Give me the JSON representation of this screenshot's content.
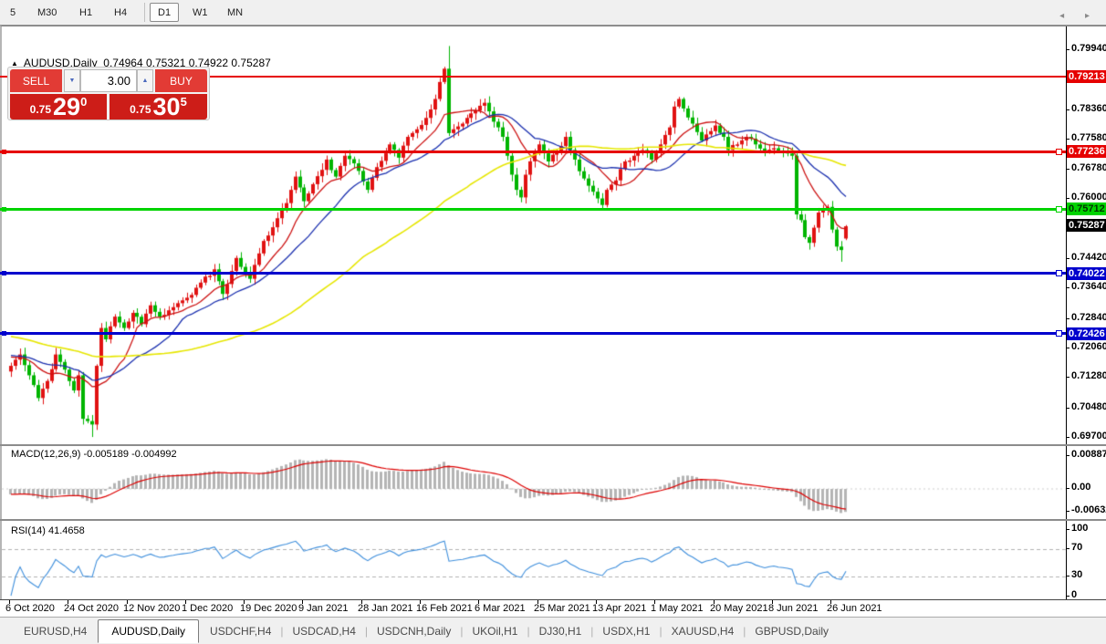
{
  "icons": {
    "collapse": "▲",
    "spin_down": "▼",
    "spin_up": "▲",
    "tab_scroll": "◂ ▸"
  },
  "toolbar": {
    "timeframes": [
      {
        "label": "5"
      },
      {
        "label": "M30"
      },
      {
        "label": "H1"
      },
      {
        "label": "H4"
      },
      {
        "label": "D1",
        "active": true,
        "sep_before": true
      },
      {
        "label": "W1"
      },
      {
        "label": "MN"
      }
    ]
  },
  "chart_header": {
    "symbol": "AUDUSD,Daily",
    "ohlc_values": "0.74964 0.75321 0.74922 0.75287"
  },
  "trade_panel": {
    "sell_label": "SELL",
    "buy_label": "BUY",
    "volume": "3.00",
    "sell_price": {
      "prefix": "0.75",
      "big": "29",
      "sup": "0"
    },
    "buy_price": {
      "prefix": "0.75",
      "big": "30",
      "sup": "5"
    }
  },
  "chart_data": [
    {
      "id": "price-chart",
      "type": "candlestick",
      "symbol": "AUDUSD",
      "timeframe": "Daily",
      "up_color": "#e01212",
      "down_color": "#00b400",
      "candles_count": 186,
      "y_axis_ticks": [
        "0.79940",
        "0.78360",
        "0.77580",
        "0.76780",
        "0.76000",
        "0.74420",
        "0.73640",
        "0.72840",
        "0.72060",
        "0.71280",
        "0.70480",
        "0.69700"
      ],
      "x_labels": [
        "6 Oct 2020",
        "24 Oct 2020",
        "12 Nov 2020",
        "1 Dec 2020",
        "19 Dec 2020",
        "9 Jan 2021",
        "28 Jan 2021",
        "16 Feb 2021",
        "6 Mar 2021",
        "25 Mar 2021",
        "13 Apr 2021",
        "1 May 2021",
        "20 May 2021",
        "8 Jun 2021",
        "26 Jun 2021"
      ],
      "close_path_anchors": [
        [
          0,
          0.716
        ],
        [
          2,
          0.719
        ],
        [
          4,
          0.7135
        ],
        [
          6,
          0.7075
        ],
        [
          8,
          0.712
        ],
        [
          10,
          0.719
        ],
        [
          12,
          0.715
        ],
        [
          14,
          0.7095
        ],
        [
          15,
          0.7135
        ],
        [
          16,
          0.702
        ],
        [
          18,
          0.7005
        ],
        [
          19,
          0.716
        ],
        [
          20,
          0.726
        ],
        [
          21,
          0.723
        ],
        [
          23,
          0.729
        ],
        [
          25,
          0.726
        ],
        [
          27,
          0.73
        ],
        [
          29,
          0.727
        ],
        [
          31,
          0.732
        ],
        [
          33,
          0.729
        ],
        [
          36,
          0.7315
        ],
        [
          39,
          0.734
        ],
        [
          42,
          0.738
        ],
        [
          45,
          0.7415
        ],
        [
          47,
          0.735
        ],
        [
          50,
          0.7445
        ],
        [
          53,
          0.739
        ],
        [
          56,
          0.749
        ],
        [
          59,
          0.755
        ],
        [
          61,
          0.759
        ],
        [
          63,
          0.766
        ],
        [
          65,
          0.7595
        ],
        [
          67,
          0.764
        ],
        [
          70,
          0.7705
        ],
        [
          72,
          0.766
        ],
        [
          74,
          0.7715
        ],
        [
          76,
          0.7695
        ],
        [
          77,
          0.7675
        ],
        [
          79,
          0.7625
        ],
        [
          81,
          0.7685
        ],
        [
          84,
          0.7745
        ],
        [
          86,
          0.771
        ],
        [
          88,
          0.7765
        ],
        [
          90,
          0.7785
        ],
        [
          92,
          0.7815
        ],
        [
          94,
          0.7865
        ],
        [
          95,
          0.791
        ],
        [
          96,
          0.7945
        ],
        [
          97,
          0.7775
        ],
        [
          98,
          0.7785
        ],
        [
          101,
          0.7815
        ],
        [
          103,
          0.7835
        ],
        [
          105,
          0.7855
        ],
        [
          107,
          0.7805
        ],
        [
          109,
          0.7765
        ],
        [
          110,
          0.7715
        ],
        [
          112,
          0.7625
        ],
        [
          113,
          0.7605
        ],
        [
          114,
          0.7665
        ],
        [
          116,
          0.7725
        ],
        [
          117,
          0.7745
        ],
        [
          119,
          0.77
        ],
        [
          121,
          0.7725
        ],
        [
          123,
          0.7765
        ],
        [
          125,
          0.7705
        ],
        [
          127,
          0.7655
        ],
        [
          129,
          0.762
        ],
        [
          131,
          0.7585
        ],
        [
          132,
          0.7625
        ],
        [
          134,
          0.765
        ],
        [
          136,
          0.77
        ],
        [
          138,
          0.7715
        ],
        [
          140,
          0.773
        ],
        [
          142,
          0.7705
        ],
        [
          144,
          0.7745
        ],
        [
          146,
          0.779
        ],
        [
          147,
          0.7845
        ],
        [
          148,
          0.7865
        ],
        [
          149,
          0.784
        ],
        [
          151,
          0.78
        ],
        [
          153,
          0.7755
        ],
        [
          155,
          0.778
        ],
        [
          156,
          0.7795
        ],
        [
          158,
          0.7765
        ],
        [
          159,
          0.773
        ],
        [
          161,
          0.7745
        ],
        [
          163,
          0.7765
        ],
        [
          165,
          0.7745
        ],
        [
          167,
          0.7725
        ],
        [
          169,
          0.7735
        ],
        [
          171,
          0.7725
        ],
        [
          173,
          0.7715
        ],
        [
          174,
          0.756
        ],
        [
          175,
          0.7545
        ],
        [
          176,
          0.75
        ],
        [
          177,
          0.7485
        ],
        [
          178,
          0.7525
        ],
        [
          179,
          0.7565
        ],
        [
          180,
          0.7575
        ],
        [
          181,
          0.758
        ],
        [
          182,
          0.752
        ],
        [
          183,
          0.7475
        ],
        [
          184,
          0.7466
        ],
        [
          185,
          0.75287
        ]
      ],
      "wick_overrides": {
        "18": {
          "low": 0.6972
        },
        "97": {
          "high": 0.8005
        },
        "184": {
          "low": 0.7435
        }
      },
      "last_candle": {
        "open": 0.74964,
        "high": 0.75321,
        "low": 0.74922,
        "close": 0.75287
      },
      "current_price": {
        "label": "0.75287",
        "value": 0.75287,
        "bg": "#000000",
        "fg": "#ffffff"
      },
      "moving_averages": [
        {
          "name": "fast-ma",
          "period": 10,
          "color": "#cc1111"
        },
        {
          "name": "mid-ma",
          "period": 20,
          "color": "#1a2fae"
        },
        {
          "name": "slow-ma",
          "period": 60,
          "color": "#e6e600"
        }
      ],
      "levels": [
        {
          "label": "0.79213",
          "value": 0.79213,
          "color": "#e60000",
          "fg": "#ffffff",
          "thickness": 2,
          "marker": false,
          "handle": false
        },
        {
          "label": "0.77236",
          "value": 0.77236,
          "color": "#e60000",
          "fg": "#ffffff",
          "thickness": 3,
          "marker": true,
          "handle": true
        },
        {
          "label": "0.75712",
          "value": 0.75712,
          "color": "#00d300",
          "fg": "#003300",
          "thickness": 3,
          "marker": true,
          "handle": true
        },
        {
          "label": "0.74022",
          "value": 0.74022,
          "color": "#0000cd",
          "fg": "#ffffff",
          "thickness": 3,
          "marker": true,
          "handle": true
        },
        {
          "label": "0.72426",
          "value": 0.72426,
          "color": "#0000cd",
          "fg": "#ffffff",
          "thickness": 3,
          "marker": true,
          "handle": true
        }
      ]
    },
    {
      "id": "macd-panel",
      "type": "macd-histogram",
      "label": "MACD(12,26,9) -0.005189 -0.004992",
      "params": [
        12,
        26,
        9
      ],
      "main_value": -0.005189,
      "signal_value": -0.004992,
      "axis_ticks": [
        "0.008871",
        "0.00",
        "-0.00632"
      ],
      "histogram_color": "#b4b4b4",
      "signal_color": "#dd0000"
    },
    {
      "id": "rsi-panel",
      "type": "line",
      "label": "RSI(14) 41.4658",
      "period": 14,
      "value": 41.4658,
      "axis_ticks": [
        "100",
        "70",
        "30",
        "0"
      ],
      "level_lines": [
        70,
        30
      ],
      "line_color": "#3f8fdc"
    }
  ],
  "tabs": {
    "items": [
      {
        "label": "EURUSD,H4"
      },
      {
        "label": "AUDUSD,Daily",
        "active": true
      },
      {
        "label": "USDCHF,H4"
      },
      {
        "label": "USDCAD,H4"
      },
      {
        "label": "USDCNH,Daily"
      },
      {
        "label": "UKOil,H1"
      },
      {
        "label": "DJ30,H1"
      },
      {
        "label": "USDX,H1"
      },
      {
        "label": "XAUUSD,H4"
      },
      {
        "label": "GBPUSD,Daily"
      }
    ]
  }
}
